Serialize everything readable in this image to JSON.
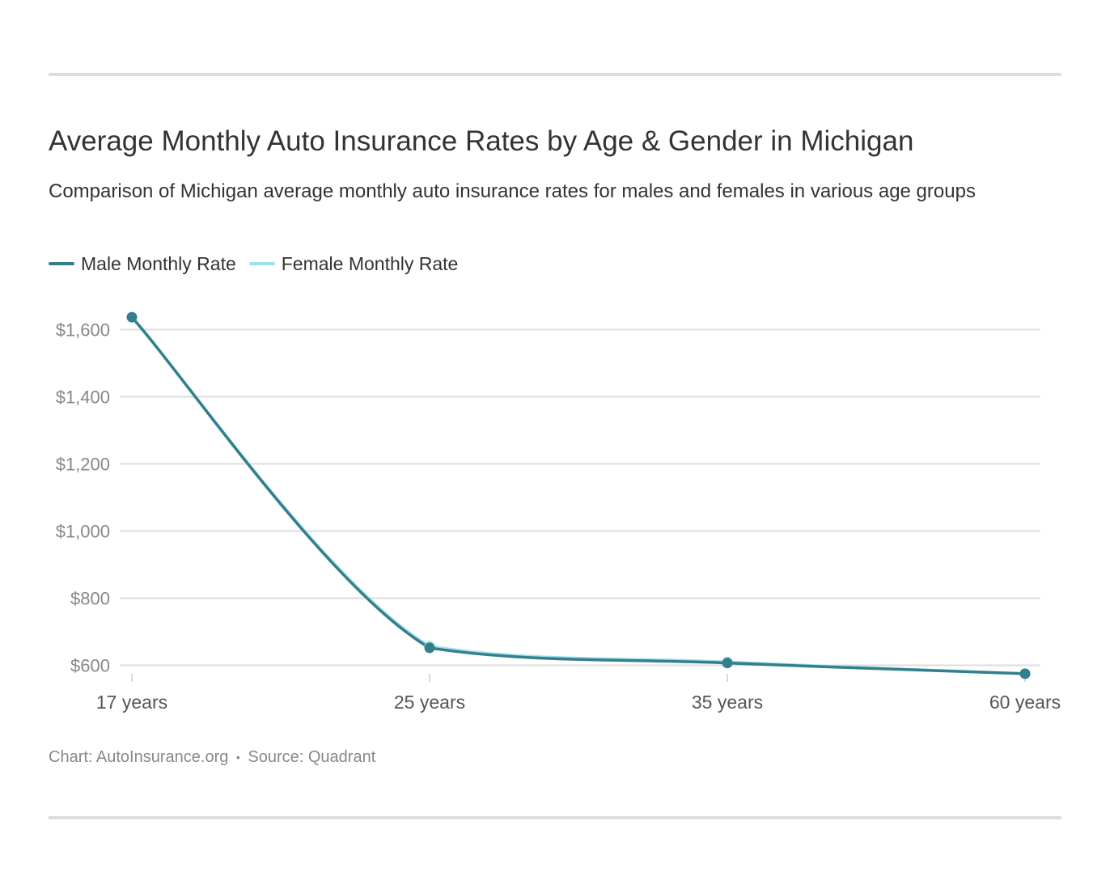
{
  "title": "Average Monthly Auto Insurance Rates by Age & Gender in Michigan",
  "subtitle": "Comparison of Michigan average monthly auto insurance rates for males and females in various age groups",
  "footer": {
    "chart_credit": "Chart: AutoInsurance.org",
    "separator": "•",
    "source": "Source: Quadrant"
  },
  "colors": {
    "male": "#347f8c",
    "female": "#9ee0ee",
    "grid": "#dddddd",
    "tick_text": "#888888",
    "category_text": "#555555"
  },
  "chart_data": {
    "type": "line",
    "title": "Average Monthly Auto Insurance Rates by Age & Gender in Michigan",
    "subtitle": "Comparison of Michigan average monthly auto insurance rates for males and females in various age groups",
    "categories": [
      "17 years",
      "25 years",
      "35 years",
      "60 years"
    ],
    "series": [
      {
        "name": "Male Monthly Rate",
        "values": [
          1637,
          652,
          607,
          575
        ]
      },
      {
        "name": "Female Monthly Rate",
        "values": [
          1637,
          657,
          610,
          575
        ]
      }
    ],
    "ylim": [
      578,
      1600
    ],
    "yticks": [
      600,
      800,
      1000,
      1200,
      1400,
      1600
    ],
    "ytick_labels": [
      "$600",
      "$800",
      "$1,000",
      "$1,200",
      "$1,400",
      "$1,600"
    ],
    "xlabel": "",
    "ylabel": "",
    "grid": true,
    "legend": "top-left"
  }
}
